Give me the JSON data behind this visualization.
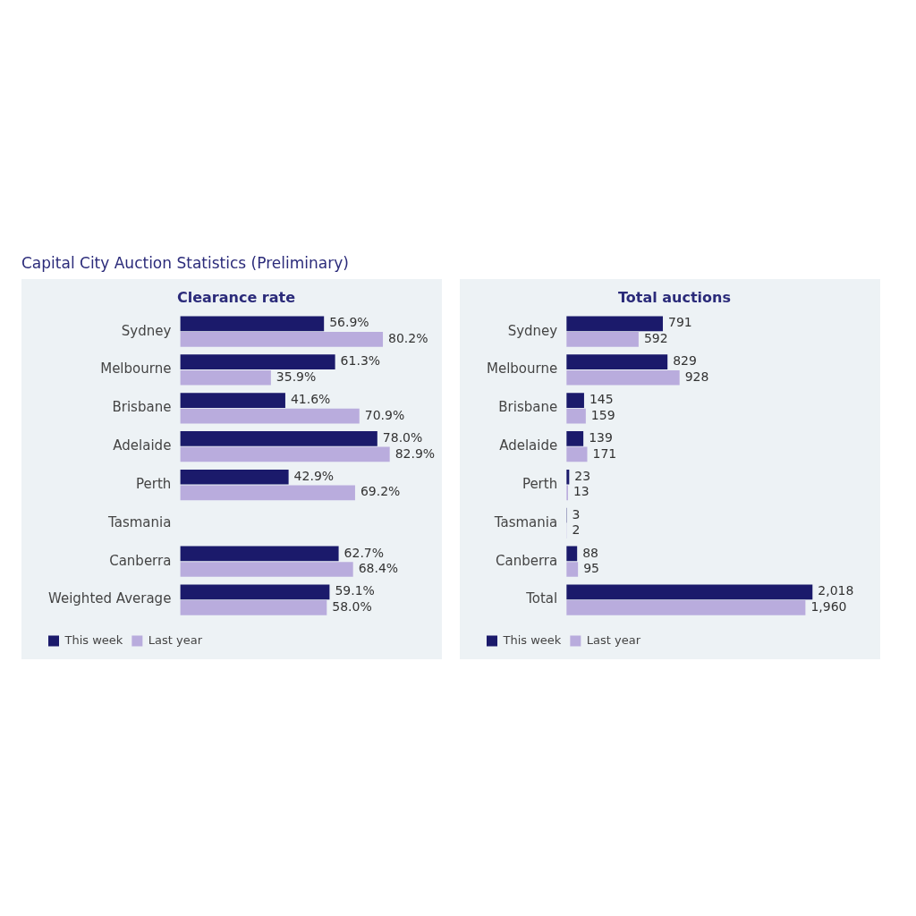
{
  "chart_data": [
    {
      "type": "bar",
      "orientation": "horizontal",
      "title": "Clearance rate",
      "annotations": [
        "Capital City Auction Statistics (Preliminary)"
      ],
      "categories": [
        "Sydney",
        "Melbourne",
        "Brisbane",
        "Adelaide",
        "Perth",
        "Tasmania",
        "Canberra",
        "Weighted Average"
      ],
      "series": [
        {
          "name": "This week",
          "color": "#1b1a6b",
          "values": [
            56.9,
            61.3,
            41.6,
            78.0,
            42.9,
            null,
            62.7,
            59.1
          ],
          "value_labels": [
            "56.9%",
            "61.3%",
            "41.6%",
            "78.0%",
            "42.9%",
            null,
            "62.7%",
            "59.1%"
          ]
        },
        {
          "name": "Last year",
          "color": "#b9acdd",
          "values": [
            80.2,
            35.9,
            70.9,
            82.9,
            69.2,
            null,
            68.4,
            58.0
          ],
          "value_labels": [
            "80.2%",
            "35.9%",
            "70.9%",
            "82.9%",
            "69.2%",
            null,
            "68.4%",
            "58.0%"
          ]
        }
      ],
      "legend": "bottom left",
      "grid": false,
      "tick_labels": "y"
    },
    {
      "type": "bar",
      "orientation": "horizontal",
      "title": "Total auctions",
      "categories": [
        "Sydney",
        "Melbourne",
        "Brisbane",
        "Adelaide",
        "Perth",
        "Tasmania",
        "Canberra",
        "Total"
      ],
      "series": [
        {
          "name": "This week",
          "color": "#1b1a6b",
          "values": [
            791,
            829,
            145,
            139,
            23,
            3,
            88,
            2018
          ],
          "value_labels": [
            "791",
            "829",
            "145",
            "139",
            "23",
            "3",
            "88",
            "2,018"
          ]
        },
        {
          "name": "Last year",
          "color": "#b9acdd",
          "values": [
            592,
            928,
            159,
            171,
            13,
            2,
            95,
            1960
          ],
          "value_labels": [
            "592",
            "928",
            "159",
            "171",
            "13",
            "2",
            "95",
            "1,960"
          ]
        }
      ],
      "legend": "bottom left",
      "grid": false,
      "tick_labels": "y"
    }
  ]
}
